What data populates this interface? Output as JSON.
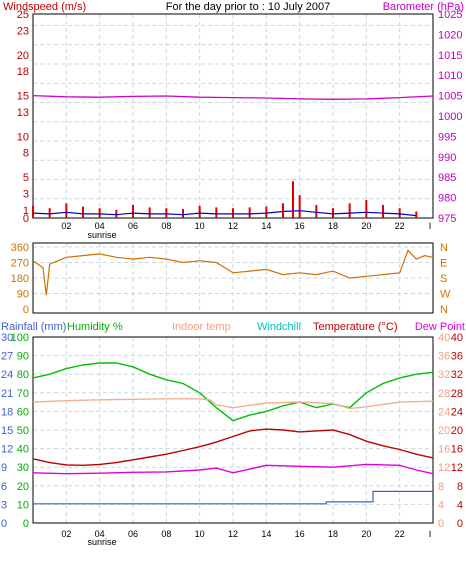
{
  "chart_data": [
    {
      "type": "line",
      "title": "For the day prior to : 10 July 2007",
      "y_left_label": "Windspeed (m/s)",
      "y_right_label": "Barometer (hPa)",
      "x_ticks": [
        "02",
        "04",
        "06",
        "08",
        "10",
        "12",
        "14",
        "16",
        "18",
        "20",
        "22",
        "I"
      ],
      "x_annotation": "sunrise",
      "y_left_ticks": [
        "0",
        "1",
        "3",
        "5",
        "8",
        "10",
        "13",
        "15",
        "18",
        "20",
        "23",
        "25"
      ],
      "y_right_ticks": [
        "975",
        "980",
        "985",
        "990",
        "995",
        "1000",
        "1005",
        "1010",
        "1015",
        "1020",
        "1025"
      ],
      "ylim_left": [
        0,
        25
      ],
      "ylim_right": [
        975,
        1025
      ],
      "grid": true,
      "series": [
        {
          "name": "Barometer",
          "axis": "right",
          "color": "#d000d0",
          "x": [
            0,
            2,
            4,
            6,
            8,
            10,
            12,
            14,
            16,
            18,
            20,
            22,
            24
          ],
          "values": [
            1005.0,
            1004.7,
            1004.6,
            1004.8,
            1004.9,
            1004.6,
            1004.5,
            1004.4,
            1004.2,
            1004.1,
            1004.2,
            1004.5,
            1004.9
          ]
        },
        {
          "name": "Gust",
          "axis": "left",
          "color": "#e00000",
          "x": [
            0,
            1,
            2,
            3,
            4,
            5,
            6,
            7,
            8,
            9,
            10,
            11,
            12,
            13,
            14,
            15,
            15.6,
            16,
            17,
            18,
            19,
            20,
            21,
            22,
            23
          ],
          "values": [
            1.5,
            1.2,
            1.8,
            1.4,
            1.2,
            1.0,
            1.6,
            1.3,
            1.2,
            1.1,
            1.5,
            1.3,
            1.2,
            1.3,
            1.4,
            1.8,
            4.5,
            2.8,
            1.6,
            1.2,
            1.8,
            2.2,
            1.6,
            1.2,
            0.8
          ]
        },
        {
          "name": "Wind speed",
          "axis": "left",
          "color": "#0000c0",
          "x": [
            0,
            1,
            2,
            3,
            4,
            5,
            6,
            7,
            8,
            9,
            10,
            11,
            12,
            13,
            14,
            15,
            16,
            17,
            18,
            19,
            20,
            21,
            22,
            23
          ],
          "values": [
            0.6,
            0.5,
            0.7,
            0.5,
            0.5,
            0.4,
            0.6,
            0.5,
            0.5,
            0.4,
            0.6,
            0.5,
            0.5,
            0.5,
            0.6,
            0.8,
            0.9,
            0.7,
            0.5,
            0.6,
            0.7,
            0.6,
            0.5,
            0.3
          ]
        }
      ]
    },
    {
      "type": "line",
      "title": "",
      "y_left_ticks": [
        "0",
        "90",
        "180",
        "270",
        "360"
      ],
      "y_right_ticks": [
        "N",
        "W",
        "S",
        "E",
        "N"
      ],
      "ylim": [
        0,
        360
      ],
      "grid": true,
      "series": [
        {
          "name": "Wind direction",
          "color": "#d07000",
          "x": [
            0,
            0.6,
            0.8,
            1,
            2,
            3,
            4,
            5,
            6,
            7,
            8,
            9,
            10,
            11,
            12,
            13,
            14,
            15,
            16,
            17,
            18,
            19,
            20,
            21,
            22,
            22.5,
            23,
            23.5,
            24
          ],
          "values": [
            280,
            240,
            80,
            260,
            300,
            310,
            320,
            300,
            290,
            300,
            290,
            270,
            280,
            270,
            210,
            220,
            230,
            200,
            210,
            200,
            220,
            180,
            190,
            200,
            210,
            340,
            290,
            310,
            300
          ]
        }
      ]
    },
    {
      "type": "line",
      "title": "",
      "legend": [
        "Rainfall (mm)",
        "Humidity %",
        "Indoor temp",
        "Windchill",
        "Temperature (°C)",
        "Dew Point"
      ],
      "x_ticks": [
        "02",
        "04",
        "06",
        "08",
        "10",
        "12",
        "14",
        "16",
        "18",
        "20",
        "22",
        "I"
      ],
      "x_annotation": "sunrise",
      "y_rain_ticks": [
        "0",
        "3",
        "6",
        "9",
        "12",
        "15",
        "18",
        "21",
        "24",
        "27",
        "30"
      ],
      "y_humidity_ticks": [
        "0",
        "10",
        "20",
        "30",
        "40",
        "50",
        "60",
        "70",
        "80",
        "90",
        "100"
      ],
      "y_temp_ticks_inner": [
        "0",
        "4",
        "8",
        "12",
        "16",
        "20",
        "24",
        "28",
        "32",
        "36",
        "40"
      ],
      "y_temp_ticks_outer": [
        "0",
        "4",
        "8",
        "12",
        "16",
        "20",
        "24",
        "28",
        "32",
        "36",
        "40"
      ],
      "ylim_rain": [
        0,
        30
      ],
      "ylim_humidity": [
        0,
        100
      ],
      "ylim_temp": [
        0,
        40
      ],
      "grid": true,
      "series": [
        {
          "name": "Humidity %",
          "axis": "humidity",
          "color": "#00c000",
          "x": [
            0,
            1,
            2,
            3,
            4,
            5,
            6,
            7,
            8,
            9,
            10,
            11,
            12,
            13,
            14,
            15,
            16,
            17,
            18,
            19,
            20,
            21,
            22,
            23,
            24
          ],
          "values": [
            78,
            80,
            83,
            85,
            86,
            86,
            84,
            80,
            77,
            75,
            70,
            62,
            55,
            58,
            60,
            63,
            65,
            62,
            64,
            62,
            70,
            75,
            78,
            80,
            81
          ]
        },
        {
          "name": "Indoor temp",
          "axis": "temp",
          "color": "#f0b090",
          "x": [
            0,
            2,
            4,
            6,
            8,
            10,
            10.6,
            11,
            12,
            14,
            16,
            18,
            19,
            20,
            22,
            24
          ],
          "values": [
            26.0,
            26.3,
            26.5,
            26.6,
            26.7,
            26.7,
            26.5,
            25.4,
            24.8,
            25.8,
            26.0,
            25.7,
            24.6,
            25.0,
            26.0,
            26.2
          ]
        },
        {
          "name": "Temperature (°C)",
          "axis": "temp",
          "color": "#c00000",
          "x": [
            0,
            1,
            2,
            3,
            4,
            5,
            6,
            7,
            8,
            9,
            10,
            11,
            12,
            13,
            14,
            15,
            16,
            17,
            18,
            19,
            20,
            21,
            22,
            23,
            24
          ],
          "values": [
            13.8,
            13.0,
            12.5,
            12.4,
            12.6,
            13.0,
            13.6,
            14.2,
            14.8,
            15.6,
            16.4,
            17.4,
            18.6,
            19.8,
            20.2,
            20.0,
            19.6,
            19.8,
            20.0,
            19.0,
            17.6,
            16.6,
            15.8,
            14.8,
            14.0
          ]
        },
        {
          "name": "Dew Point",
          "axis": "temp",
          "color": "#e000e0",
          "x": [
            0,
            2,
            4,
            6,
            8,
            10,
            11,
            12,
            13,
            14,
            16,
            18,
            20,
            22,
            23,
            24
          ],
          "values": [
            10.8,
            10.6,
            10.7,
            10.9,
            11.0,
            11.4,
            11.8,
            10.8,
            11.6,
            12.4,
            12.2,
            12.0,
            12.6,
            12.4,
            11.4,
            10.6
          ]
        },
        {
          "name": "Rainfall (mm)",
          "axis": "rain",
          "color": "#4060d0",
          "x": [
            0,
            17.6,
            17.6,
            20.4,
            20.4,
            24
          ],
          "values": [
            3.1,
            3.1,
            3.4,
            3.4,
            5.1,
            5.1
          ]
        }
      ]
    }
  ]
}
